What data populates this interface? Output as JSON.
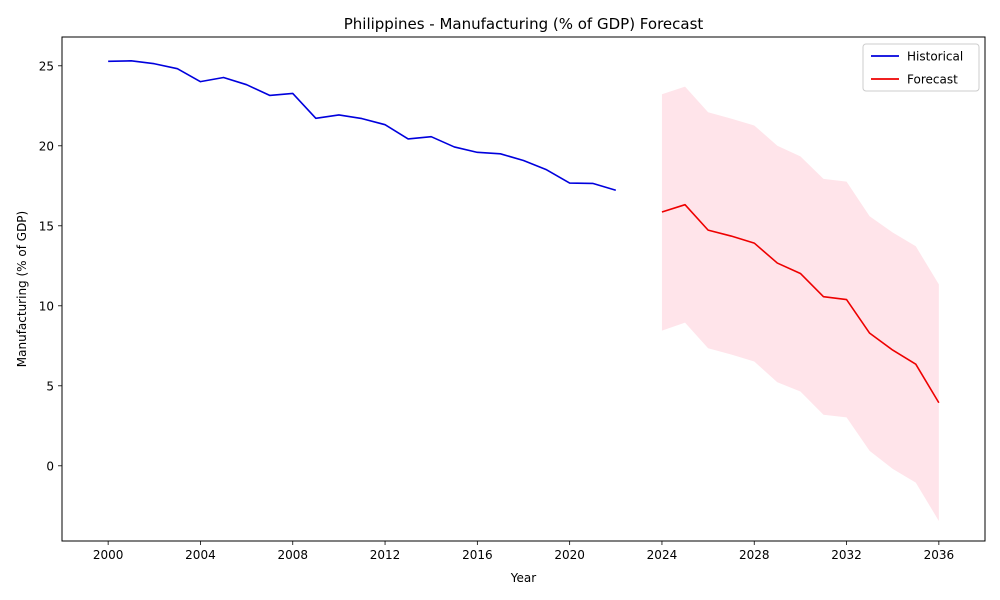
{
  "chart_data": {
    "type": "line",
    "title": "Philippines - Manufacturing (% of GDP) Forecast",
    "xlabel": "Year",
    "ylabel": "Manufacturing (% of GDP)",
    "xlim": [
      1998,
      2038
    ],
    "ylim": [
      -4.7,
      26.8
    ],
    "xticks": [
      2000,
      2004,
      2008,
      2012,
      2016,
      2020,
      2024,
      2028,
      2032,
      2036
    ],
    "yticks": [
      0,
      5,
      10,
      15,
      20,
      25
    ],
    "grid": false,
    "legend": "top-right",
    "series": [
      {
        "name": "Historical",
        "color": "#0000dd",
        "x": [
          2000,
          2001,
          2002,
          2003,
          2004,
          2005,
          2006,
          2007,
          2008,
          2009,
          2010,
          2011,
          2012,
          2013,
          2014,
          2015,
          2016,
          2017,
          2018,
          2019,
          2020,
          2021,
          2022
        ],
        "y": [
          25.28,
          25.31,
          25.13,
          24.82,
          24.01,
          24.27,
          23.82,
          23.15,
          23.27,
          21.72,
          21.93,
          21.7,
          21.32,
          20.43,
          20.57,
          19.93,
          19.59,
          19.5,
          19.08,
          18.5,
          17.67,
          17.65,
          17.22
        ]
      },
      {
        "name": "Forecast",
        "color": "#ee0000",
        "x": [
          2024,
          2025,
          2026,
          2027,
          2028,
          2029,
          2030,
          2031,
          2032,
          2033,
          2034,
          2035,
          2036
        ],
        "y": [
          15.86,
          16.32,
          14.73,
          14.36,
          13.92,
          12.67,
          12.02,
          10.57,
          10.39,
          8.29,
          7.23,
          6.35,
          3.94
        ],
        "lower": [
          8.45,
          8.95,
          7.35,
          6.96,
          6.52,
          5.22,
          4.64,
          3.19,
          3.03,
          0.93,
          -0.19,
          -1.05,
          -3.45
        ],
        "upper": [
          23.22,
          23.7,
          22.1,
          21.7,
          21.27,
          20.0,
          19.34,
          17.93,
          17.76,
          15.6,
          14.58,
          13.72,
          11.34
        ],
        "band_color": "#ffe4ea"
      }
    ]
  }
}
